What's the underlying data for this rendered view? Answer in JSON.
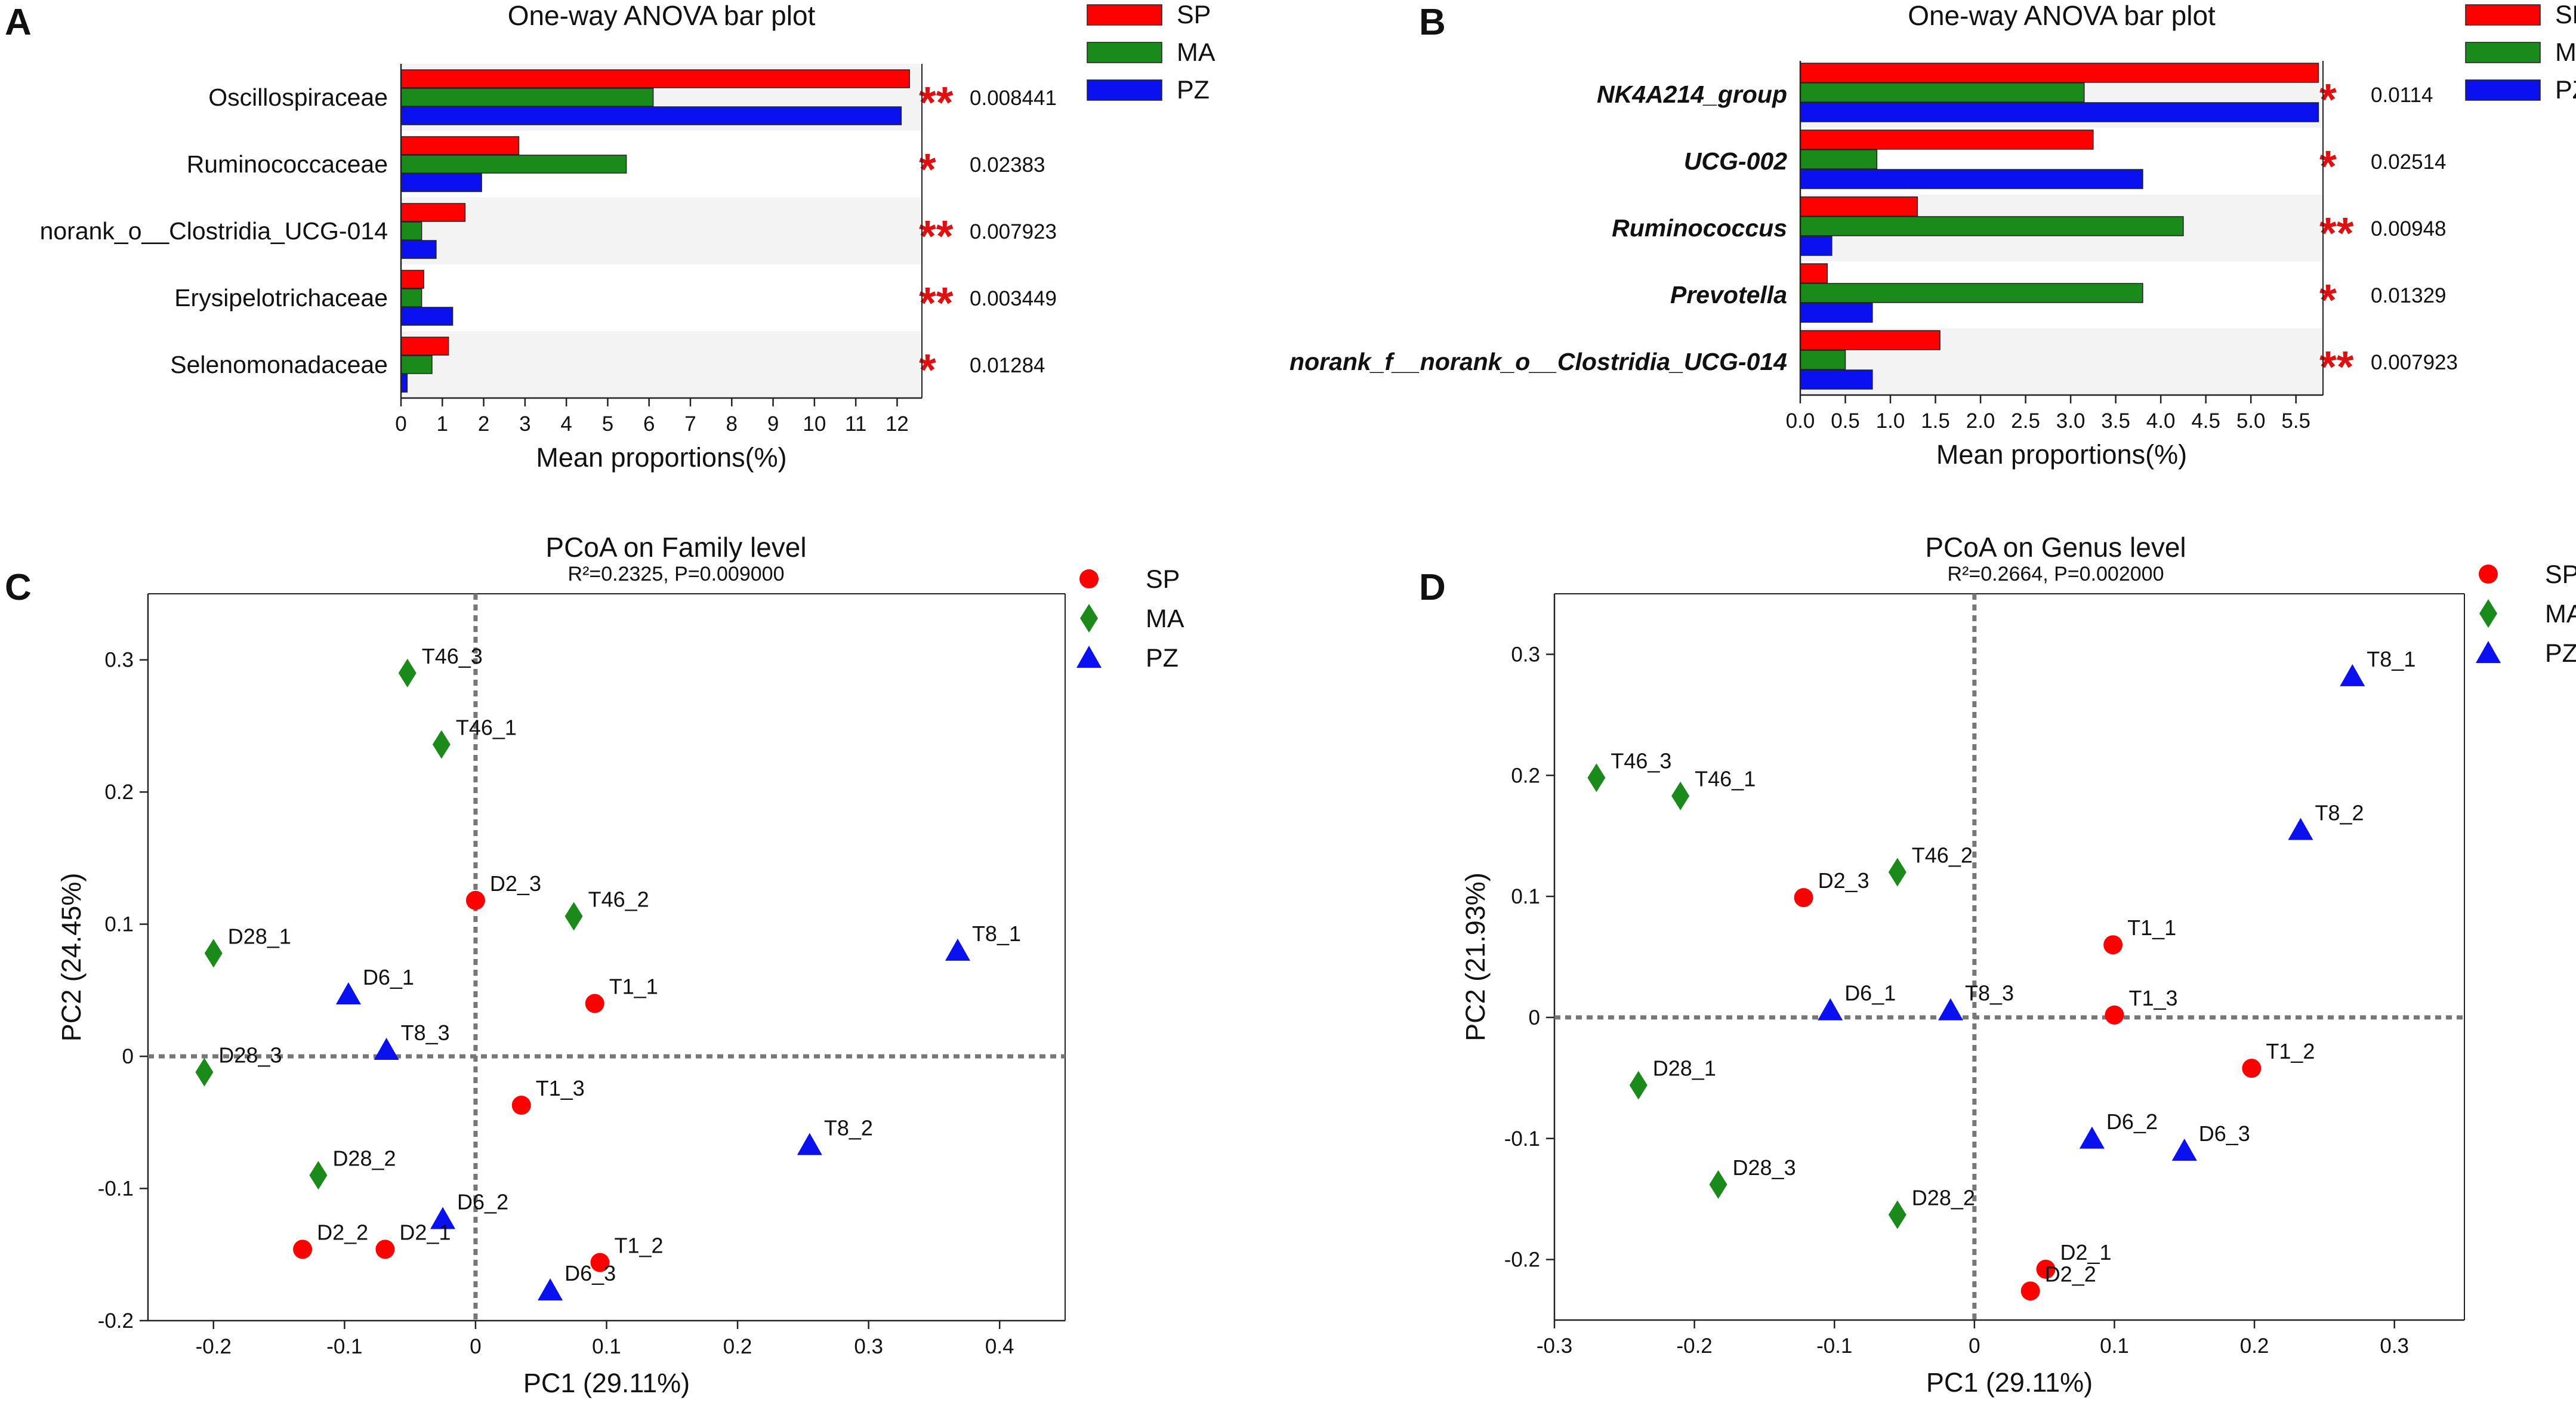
{
  "colors": {
    "SP": "#ff0000",
    "MA": "#1a8a1a",
    "PZ": "#0a10ee"
  },
  "chart_data": [
    {
      "panel": "A",
      "type": "bar",
      "orientation": "horizontal",
      "title": "One-way ANOVA bar plot",
      "xlabel": "Mean proportions(%)",
      "xlim": [
        0,
        12.6
      ],
      "xticks": [
        "0",
        "1",
        "2",
        "3",
        "4",
        "5",
        "6",
        "7",
        "8",
        "9",
        "10",
        "11",
        "12"
      ],
      "legend": [
        "SP",
        "MA",
        "PZ"
      ],
      "categories": [
        {
          "name": "Oscillospiraceae",
          "SP": 12.3,
          "MA": 6.1,
          "PZ": 12.1,
          "stars": "**",
          "p": "0.008441"
        },
        {
          "name": "Ruminococcaceae",
          "SP": 2.85,
          "MA": 5.45,
          "PZ": 1.95,
          "stars": "*",
          "p": "0.02383"
        },
        {
          "name": "norank_o__Clostridia_UCG-014",
          "SP": 1.55,
          "MA": 0.5,
          "PZ": 0.85,
          "stars": "**",
          "p": "0.007923"
        },
        {
          "name": "Erysipelotrichaceae",
          "SP": 0.55,
          "MA": 0.5,
          "PZ": 1.25,
          "stars": "**",
          "p": "0.003449"
        },
        {
          "name": "Selenomonadaceae",
          "SP": 1.15,
          "MA": 0.75,
          "PZ": 0.15,
          "stars": "*",
          "p": "0.01284"
        }
      ]
    },
    {
      "panel": "B",
      "type": "bar",
      "orientation": "horizontal",
      "title": "One-way ANOVA bar plot",
      "xlabel": "Mean proportions(%)",
      "xlim": [
        0,
        5.8
      ],
      "xticks": [
        "0.0",
        "0.5",
        "1.0",
        "1.5",
        "2.0",
        "2.5",
        "3.0",
        "3.5",
        "4.0",
        "4.5",
        "5.0",
        "5.5"
      ],
      "legend": [
        "SP",
        "MA",
        "PZ"
      ],
      "categories": [
        {
          "name": "NK4A214_group",
          "SP": 5.75,
          "MA": 3.15,
          "PZ": 5.75,
          "stars": "*",
          "p": "0.0114"
        },
        {
          "name": "UCG-002",
          "SP": 3.25,
          "MA": 0.85,
          "PZ": 3.8,
          "stars": "*",
          "p": "0.02514"
        },
        {
          "name": "Ruminococcus",
          "SP": 1.3,
          "MA": 4.25,
          "PZ": 0.35,
          "stars": "**",
          "p": "0.00948"
        },
        {
          "name": "Prevotella",
          "SP": 0.3,
          "MA": 3.8,
          "PZ": 0.8,
          "stars": "*",
          "p": "0.01329"
        },
        {
          "name": "norank_f__norank_o__Clostridia_UCG-014",
          "SP": 1.55,
          "MA": 0.5,
          "PZ": 0.8,
          "stars": "**",
          "p": "0.007923"
        }
      ]
    },
    {
      "panel": "C",
      "type": "scatter",
      "title": "PCoA on Family level",
      "subtitle": "R²=0.2325, P=0.009000",
      "xlabel": "PC1 (29.11%)",
      "ylabel": "PC2 (24.45%)",
      "xlim": [
        -0.25,
        0.45
      ],
      "ylim": [
        -0.2,
        0.35
      ],
      "xticks": [
        -0.2,
        -0.1,
        0,
        0.1,
        0.2,
        0.3,
        0.4
      ],
      "yticks": [
        -0.2,
        -0.1,
        0,
        0.1,
        0.2,
        0.3
      ],
      "legend": [
        "SP",
        "MA",
        "PZ"
      ],
      "points": [
        {
          "label": "T46_3",
          "group": "MA",
          "x": -0.052,
          "y": 0.29
        },
        {
          "label": "T46_1",
          "group": "MA",
          "x": -0.026,
          "y": 0.236
        },
        {
          "label": "D2_3",
          "group": "SP",
          "x": 0.0,
          "y": 0.118
        },
        {
          "label": "T46_2",
          "group": "MA",
          "x": 0.075,
          "y": 0.106
        },
        {
          "label": "D28_1",
          "group": "MA",
          "x": -0.2,
          "y": 0.078
        },
        {
          "label": "D6_1",
          "group": "PZ",
          "x": -0.097,
          "y": 0.047
        },
        {
          "label": "T1_1",
          "group": "SP",
          "x": 0.091,
          "y": 0.04
        },
        {
          "label": "T8_1",
          "group": "PZ",
          "x": 0.368,
          "y": 0.08
        },
        {
          "label": "T8_3",
          "group": "PZ",
          "x": -0.068,
          "y": 0.005
        },
        {
          "label": "D28_3",
          "group": "MA",
          "x": -0.207,
          "y": -0.012
        },
        {
          "label": "T1_3",
          "group": "SP",
          "x": 0.035,
          "y": -0.037
        },
        {
          "label": "T8_2",
          "group": "PZ",
          "x": 0.255,
          "y": -0.067
        },
        {
          "label": "D28_2",
          "group": "MA",
          "x": -0.12,
          "y": -0.09
        },
        {
          "label": "D6_2",
          "group": "PZ",
          "x": -0.025,
          "y": -0.123
        },
        {
          "label": "D2_2",
          "group": "SP",
          "x": -0.132,
          "y": -0.146
        },
        {
          "label": "D2_1",
          "group": "SP",
          "x": -0.069,
          "y": -0.146
        },
        {
          "label": "T1_2",
          "group": "SP",
          "x": 0.095,
          "y": -0.156
        },
        {
          "label": "D6_3",
          "group": "PZ",
          "x": 0.057,
          "y": -0.177
        }
      ]
    },
    {
      "panel": "D",
      "type": "scatter",
      "title": "PCoA on Genus level",
      "subtitle": "R²=0.2664, P=0.002000",
      "xlabel": "PC1 (29.11%)",
      "ylabel": "PC2 (21.93%)",
      "xlim": [
        -0.3,
        0.35
      ],
      "ylim": [
        -0.25,
        0.35
      ],
      "xticks": [
        -0.3,
        -0.2,
        -0.1,
        0,
        0.1,
        0.2,
        0.3
      ],
      "yticks": [
        -0.2,
        -0.1,
        0,
        0.1,
        0.2,
        0.3
      ],
      "legend": [
        "SP",
        "MA",
        "PZ"
      ],
      "points": [
        {
          "label": "T8_1",
          "group": "PZ",
          "x": 0.27,
          "y": 0.282
        },
        {
          "label": "T46_3",
          "group": "MA",
          "x": -0.27,
          "y": 0.198
        },
        {
          "label": "T46_1",
          "group": "MA",
          "x": -0.21,
          "y": 0.183
        },
        {
          "label": "T8_2",
          "group": "PZ",
          "x": 0.233,
          "y": 0.155
        },
        {
          "label": "T46_2",
          "group": "MA",
          "x": -0.055,
          "y": 0.12
        },
        {
          "label": "D2_3",
          "group": "SP",
          "x": -0.122,
          "y": 0.099
        },
        {
          "label": "T1_1",
          "group": "SP",
          "x": 0.099,
          "y": 0.06
        },
        {
          "label": "D6_1",
          "group": "PZ",
          "x": -0.103,
          "y": 0.006
        },
        {
          "label": "T8_3",
          "group": "PZ",
          "x": -0.017,
          "y": 0.006
        },
        {
          "label": "T1_3",
          "group": "SP",
          "x": 0.1,
          "y": 0.002
        },
        {
          "label": "T1_2",
          "group": "SP",
          "x": 0.198,
          "y": -0.042
        },
        {
          "label": "D28_1",
          "group": "MA",
          "x": -0.24,
          "y": -0.056
        },
        {
          "label": "D6_2",
          "group": "PZ",
          "x": 0.084,
          "y": -0.1
        },
        {
          "label": "D6_3",
          "group": "PZ",
          "x": 0.15,
          "y": -0.11
        },
        {
          "label": "D28_3",
          "group": "MA",
          "x": -0.183,
          "y": -0.138
        },
        {
          "label": "D28_2",
          "group": "MA",
          "x": -0.055,
          "y": -0.163
        },
        {
          "label": "D2_1",
          "group": "SP",
          "x": 0.051,
          "y": -0.208
        },
        {
          "label": "D2_2",
          "group": "SP",
          "x": 0.04,
          "y": -0.226
        }
      ]
    }
  ]
}
